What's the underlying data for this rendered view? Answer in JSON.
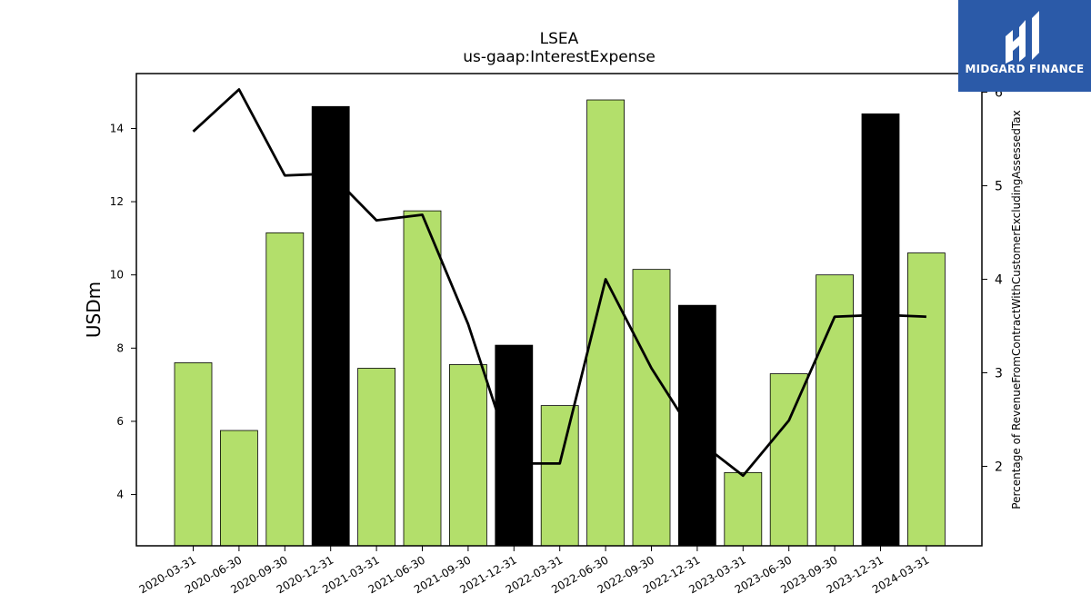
{
  "brand": {
    "name": "MIDGARD FINANCE",
    "logo_color": "#2b5aa8"
  },
  "chart_data": {
    "type": "bar",
    "title": "LSEA",
    "subtitle": "us-gaap:InterestExpense",
    "ylabel": "USDm",
    "y2label": "Percentage of RevenueFromContractWithCustomerExcludingAssessedTax",
    "ylim": [
      2.6,
      15.5
    ],
    "y2lim": [
      1.15,
      6.2
    ],
    "yticks": [
      4,
      6,
      8,
      10,
      12,
      14
    ],
    "y2ticks": [
      2,
      3,
      4,
      5,
      6
    ],
    "categories": [
      "2020-03-31",
      "2020-06-30",
      "2020-09-30",
      "2020-12-31",
      "2021-03-31",
      "2021-06-30",
      "2021-09-30",
      "2021-12-31",
      "2022-03-31",
      "2022-06-30",
      "2022-09-30",
      "2022-12-31",
      "2023-03-31",
      "2023-06-30",
      "2023-09-30",
      "2023-12-31",
      "2024-03-31"
    ],
    "series": [
      {
        "type": "bar",
        "axis": "left",
        "values": [
          7.6,
          5.75,
          11.15,
          14.6,
          7.45,
          11.75,
          7.55,
          8.08,
          6.43,
          14.78,
          10.15,
          9.17,
          4.6,
          7.3,
          10.0,
          14.4,
          10.6
        ],
        "highlight": [
          false,
          false,
          false,
          true,
          false,
          false,
          false,
          true,
          false,
          false,
          false,
          true,
          false,
          false,
          false,
          true,
          false
        ],
        "color": "#b3df6b",
        "highlight_color": "#000000"
      },
      {
        "type": "line",
        "axis": "right",
        "values": [
          5.58,
          6.03,
          5.11,
          5.13,
          4.63,
          4.69,
          3.52,
          2.03,
          2.03,
          4.0,
          3.05,
          2.28,
          1.9,
          2.49,
          3.6,
          3.62,
          3.6
        ],
        "color": "#000000"
      }
    ],
    "grid": false,
    "legend": "none"
  }
}
